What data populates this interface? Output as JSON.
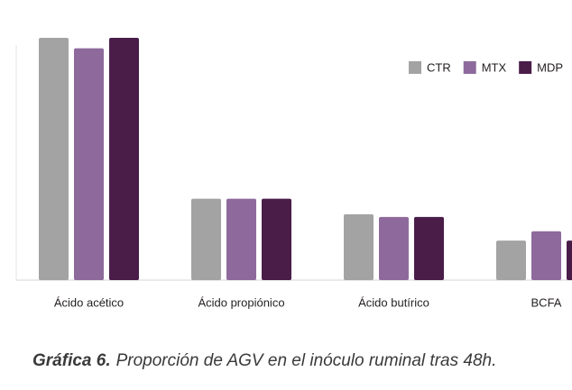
{
  "chart_data": {
    "type": "bar",
    "categories": [
      "Ácido acético",
      "Ácido propiónico",
      "Ácido butírico",
      "BCFA"
    ],
    "series": [
      {
        "name": "CTR",
        "color": "#a3a3a3",
        "values": [
          62.5,
          21,
          17,
          10.2
        ]
      },
      {
        "name": "MTX",
        "color": "#8e6a9c",
        "values": [
          59.8,
          21,
          16.3,
          12.6
        ]
      },
      {
        "name": "MDP",
        "color": "#4a1d49",
        "values": [
          62.5,
          21,
          16.3,
          10.2
        ]
      }
    ],
    "legend": "top-right",
    "caption_label": "Gráfica 6.",
    "caption": "Proporción de AGV en el inóculo ruminal tras 48h."
  }
}
